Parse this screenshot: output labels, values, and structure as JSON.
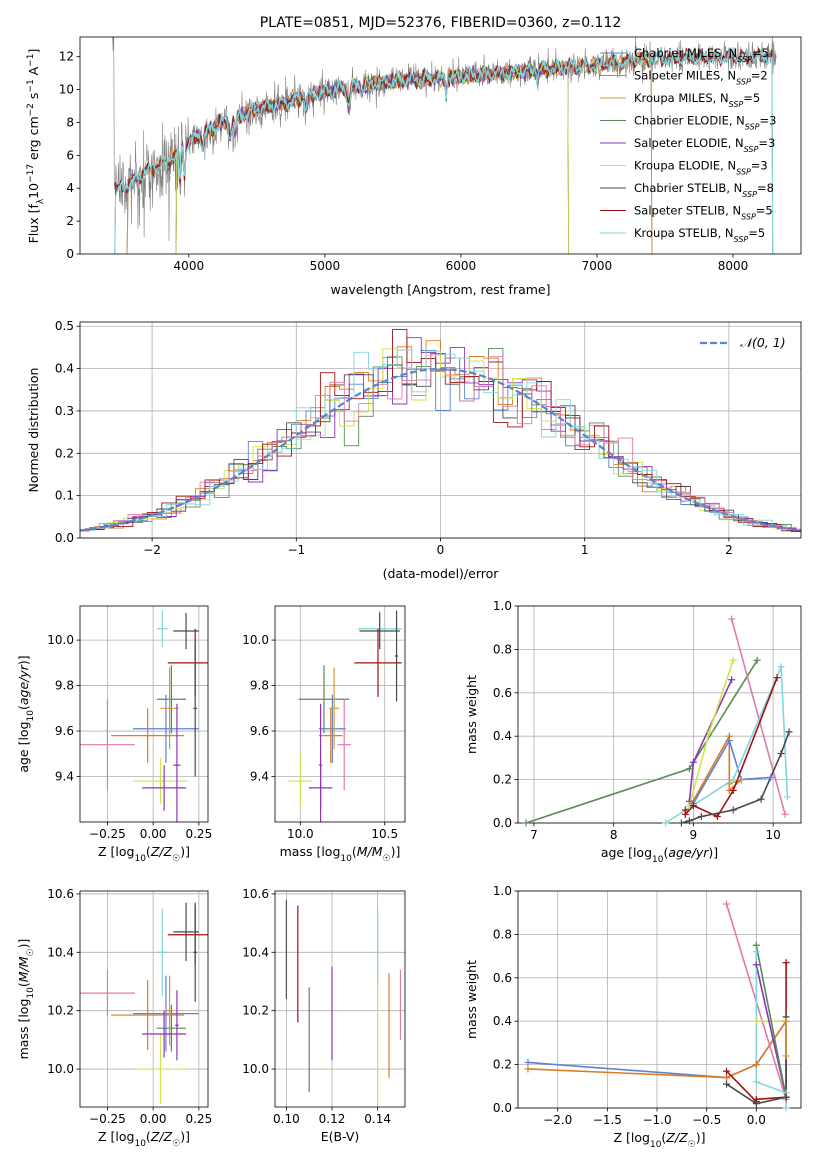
{
  "colors": {
    "Chabrier MILES": "#5b84d1",
    "Salpeter MILES": "#e07b22",
    "Kroupa MILES": "#d49a3c",
    "Chabrier ELODIE": "#5a8a56",
    "Salpeter ELODIE": "#8e33b5",
    "Kroupa ELODIE": "#cfe34a",
    "Chabrier STELIB": "#4a4a4a",
    "Salpeter STELIB": "#a31212",
    "Kroupa STELIB": "#7fd6dc",
    "extra": "#e07aaa",
    "gaussian": "#5b84d1"
  },
  "chart_data": [
    {
      "id": "spectrum",
      "type": "line",
      "title": "PLATE=0851, MJD=52376, FIBERID=0360, z=0.112",
      "xlabel": "wavelength [Angstrom, rest frame]",
      "ylabel": "Flux [fλ10⁻¹⁷ erg cm⁻² s⁻¹ A⁻¹]",
      "xlim": [
        3200,
        8500
      ],
      "ylim": [
        0,
        13.2
      ],
      "xticks": [
        4000,
        5000,
        6000,
        7000,
        8000
      ],
      "yticks": [
        0,
        2,
        4,
        6,
        8,
        10,
        12
      ],
      "grid": false,
      "legend_position": "right",
      "continuum": {
        "x": [
          3450,
          3600,
          3700,
          3800,
          3900,
          4000,
          4200,
          4500,
          4800,
          5000,
          5300,
          5600,
          6000,
          6300,
          6600,
          7000,
          7300,
          7600,
          8000,
          8300
        ],
        "y": [
          3.8,
          4.5,
          5.1,
          5.5,
          6.0,
          6.8,
          7.8,
          8.8,
          9.4,
          9.9,
          10.3,
          10.6,
          10.8,
          11.0,
          11.2,
          11.5,
          11.8,
          11.9,
          12.0,
          12.0
        ]
      },
      "legend": [
        "Chabrier MILES, N_SSP=5",
        "Salpeter MILES, N_SSP=2",
        "Kroupa MILES, N_SSP=5",
        "Chabrier ELODIE, N_SSP=3",
        "Salpeter ELODIE, N_SSP=3",
        "Kroupa ELODIE, N_SSP=3",
        "Chabrier STELIB, N_SSP=8",
        "Salpeter STELIB, N_SSP=5",
        "Kroupa STELIB, N_SSP=5"
      ],
      "legend_text": {
        "Chabrier MILES": "Chabrier MILES, N",
        "Salpeter MILES": "Salpeter MILES, N",
        "Kroupa MILES": "Kroupa MILES, N",
        "Chabrier ELODIE": "Chabrier ELODIE, N",
        "Salpeter ELODIE": "Salpeter ELODIE, N",
        "Kroupa ELODIE": "Kroupa ELODIE, N",
        "Chabrier STELIB": "Chabrier STELIB, N",
        "Salpeter STELIB": "Salpeter STELIB, N",
        "Kroupa STELIB": "Kroupa STELIB, N"
      },
      "legend_sub": "SSP",
      "legend_n": {
        "Chabrier MILES": "=5",
        "Salpeter MILES": "=2",
        "Kroupa MILES": "=5",
        "Chabrier ELODIE": "=3",
        "Salpeter ELODIE": "=3",
        "Kroupa ELODIE": "=3",
        "Chabrier STELIB": "=8",
        "Salpeter STELIB": "=5",
        "Kroupa STELIB": "=5"
      }
    },
    {
      "id": "residuals",
      "type": "histogram",
      "xlabel": "(data-model)/error",
      "ylabel": "Normed distribution",
      "xlim": [
        -2.5,
        2.5
      ],
      "ylim": [
        0,
        0.51
      ],
      "xticks": [
        -2,
        -1,
        0,
        1,
        2
      ],
      "yticks": [
        0.0,
        0.1,
        0.2,
        0.3,
        0.4,
        0.5
      ],
      "grid": true,
      "legend": [
        "𝒩(0, 1)"
      ],
      "legend_position": "top-right",
      "bin_width": 0.1
    },
    {
      "id": "age-vs-Z",
      "type": "errorbar",
      "xlabel": "Z [log10(Z/Z☉)]",
      "ylabel": "age [log10(age/yr)]",
      "xlim": [
        -0.4,
        0.3
      ],
      "ylim": [
        9.2,
        10.15
      ],
      "xticks": [
        -0.25,
        0.0,
        0.25
      ],
      "yticks": [
        9.4,
        9.6,
        9.8,
        10.0
      ],
      "grid": true,
      "points": [
        {
          "s": "Kroupa STELIB",
          "x": 0.05,
          "xe": 0.03,
          "y": 10.05,
          "ye": 0.08
        },
        {
          "s": "Chabrier STELIB",
          "x": 0.18,
          "xe": 0.07,
          "y": 10.04,
          "ye": 0.08
        },
        {
          "s": "Salpeter STELIB",
          "x": 0.23,
          "xe": 0.15,
          "y": 9.9,
          "ye": 0.15
        },
        {
          "s": "Chabrier ELODIE",
          "x": 0.1,
          "xe": 0.08,
          "y": 9.74,
          "ye": 0.15
        },
        {
          "s": "Chabrier MILES",
          "x": 0.07,
          "xe": 0.18,
          "y": 9.61,
          "ye": 0.15
        },
        {
          "s": "Salpeter MILES",
          "x": -0.03,
          "xe": 0.2,
          "y": 9.58,
          "ye": 0.12
        },
        {
          "s": "extra",
          "x": -0.25,
          "xe": 0.15,
          "y": 9.54,
          "ye": 0.2
        },
        {
          "s": "Kroupa MILES",
          "x": 0.09,
          "xe": 0.05,
          "y": 9.7,
          "ye": 0.18
        },
        {
          "s": "Kroupa ELODIE",
          "x": 0.04,
          "xe": 0.15,
          "y": 9.38,
          "ye": 0.1
        },
        {
          "s": "Salpeter ELODIE",
          "x": 0.06,
          "xe": 0.12,
          "y": 9.35,
          "ye": 0.1
        },
        {
          "s": "Salpeter ELODIE",
          "x": 0.13,
          "xe": 0.02,
          "y": 9.45,
          "ye": 0.27
        },
        {
          "s": "Chabrier STELIB",
          "x": 0.23,
          "xe": 0.01,
          "y": 9.7,
          "ye": 0.3
        }
      ]
    },
    {
      "id": "age-vs-mass",
      "type": "errorbar",
      "xlabel": "mass [log10(M/M☉)]",
      "ylabel": "",
      "xlim": [
        9.85,
        10.62
      ],
      "ylim": [
        9.2,
        10.15
      ],
      "xticks": [
        10.0,
        10.5
      ],
      "yticks": [
        9.4,
        9.6,
        9.8,
        10.0
      ],
      "grid": true,
      "points": [
        {
          "s": "Kroupa STELIB",
          "x": 10.47,
          "xe": 0.13,
          "y": 10.05,
          "ye": 0.08
        },
        {
          "s": "Chabrier STELIB",
          "x": 10.47,
          "xe": 0.12,
          "y": 10.04,
          "ye": 0.08
        },
        {
          "s": "Salpeter STELIB",
          "x": 10.46,
          "xe": 0.14,
          "y": 9.9,
          "ye": 0.15
        },
        {
          "s": "Chabrier ELODIE",
          "x": 10.14,
          "xe": 0.15,
          "y": 9.74,
          "ye": 0.15
        },
        {
          "s": "Chabrier MILES",
          "x": 10.19,
          "xe": 0.08,
          "y": 9.61,
          "ye": 0.15
        },
        {
          "s": "Salpeter MILES",
          "x": 10.18,
          "xe": 0.07,
          "y": 9.58,
          "ye": 0.12
        },
        {
          "s": "extra",
          "x": 10.26,
          "xe": 0.04,
          "y": 9.54,
          "ye": 0.2
        },
        {
          "s": "Kroupa MILES",
          "x": 10.2,
          "xe": 0.03,
          "y": 9.7,
          "ye": 0.18
        },
        {
          "s": "Kroupa ELODIE",
          "x": 10.0,
          "xe": 0.07,
          "y": 9.38,
          "ye": 0.12
        },
        {
          "s": "Salpeter ELODIE",
          "x": 10.12,
          "xe": 0.07,
          "y": 9.35,
          "ye": 0.1
        },
        {
          "s": "Salpeter ELODIE",
          "x": 10.12,
          "xe": 0.01,
          "y": 9.45,
          "ye": 0.27
        },
        {
          "s": "Chabrier STELIB",
          "x": 10.57,
          "xe": 0.01,
          "y": 9.93,
          "ye": 0.2
        }
      ]
    },
    {
      "id": "mass-weight-vs-age",
      "type": "line",
      "xlabel": "age [log10(age/yr)]",
      "ylabel": "mass weight",
      "xlim": [
        6.8,
        10.35
      ],
      "ylim": [
        0,
        1.0
      ],
      "xticks": [
        7,
        8,
        9,
        10
      ],
      "yticks": [
        0.0,
        0.2,
        0.4,
        0.6,
        0.8,
        1.0
      ],
      "grid": true,
      "series": [
        {
          "s": "Chabrier ELODIE",
          "x": [
            6.9,
            8.95,
            9.8
          ],
          "y": [
            0.0,
            0.25,
            0.75
          ]
        },
        {
          "s": "Salpeter ELODIE",
          "x": [
            8.95,
            9.0,
            9.48
          ],
          "y": [
            0.1,
            0.28,
            0.66
          ]
        },
        {
          "s": "Kroupa ELODIE",
          "x": [
            8.95,
            9.2,
            9.5
          ],
          "y": [
            0.08,
            0.42,
            0.75
          ]
        },
        {
          "s": "Salpeter MILES",
          "x": [
            8.98,
            9.45,
            9.45,
            9.6
          ],
          "y": [
            0.09,
            0.4,
            0.15,
            0.2
          ]
        },
        {
          "s": "Chabrier MILES",
          "x": [
            9.0,
            9.45,
            9.6,
            9.97
          ],
          "y": [
            0.09,
            0.38,
            0.2,
            0.21
          ]
        },
        {
          "s": "Kroupa MILES",
          "x": [
            9.45,
            9.6
          ],
          "y": [
            0.18,
            0.2
          ]
        },
        {
          "s": "extra",
          "x": [
            9.48,
            10.15
          ],
          "y": [
            0.94,
            0.04
          ]
        },
        {
          "s": "Kroupa STELIB",
          "x": [
            8.65,
            9.5,
            10.1,
            10.18
          ],
          "y": [
            0.0,
            0.2,
            0.72,
            0.12
          ]
        },
        {
          "s": "Salpeter STELIB",
          "x": [
            8.9,
            8.9,
            9.0,
            9.3,
            9.5,
            10.05
          ],
          "y": [
            0.06,
            0.04,
            0.08,
            0.03,
            0.15,
            0.67
          ]
        },
        {
          "s": "Chabrier STELIB",
          "x": [
            8.85,
            8.95,
            9.1,
            9.5,
            9.85,
            10.1,
            10.2
          ],
          "y": [
            0.0,
            0.01,
            0.03,
            0.06,
            0.11,
            0.32,
            0.42
          ]
        }
      ]
    },
    {
      "id": "mass-vs-Z",
      "type": "errorbar",
      "xlabel": "Z [log10(Z/Z☉)]",
      "ylabel": "mass [log10(M/M☉)]",
      "xlim": [
        -0.4,
        0.3
      ],
      "ylim": [
        9.87,
        10.61
      ],
      "xticks": [
        -0.25,
        0.0,
        0.25
      ],
      "yticks": [
        10.0,
        10.2,
        10.4,
        10.6
      ],
      "grid": true,
      "points": [
        {
          "s": "Kroupa STELIB",
          "x": 0.05,
          "xe": 0.03,
          "y": 10.4,
          "ye": 0.15
        },
        {
          "s": "Chabrier STELIB",
          "x": 0.18,
          "xe": 0.07,
          "y": 10.47,
          "ye": 0.1
        },
        {
          "s": "Salpeter STELIB",
          "x": 0.23,
          "xe": 0.15,
          "y": 10.46,
          "ye": 0.1
        },
        {
          "s": "Chabrier ELODIE",
          "x": 0.1,
          "xe": 0.08,
          "y": 10.14,
          "ye": 0.08
        },
        {
          "s": "Chabrier MILES",
          "x": 0.07,
          "xe": 0.18,
          "y": 10.19,
          "ye": 0.13
        },
        {
          "s": "Salpeter MILES",
          "x": -0.03,
          "xe": 0.2,
          "y": 10.185,
          "ye": 0.12
        },
        {
          "s": "extra",
          "x": -0.25,
          "xe": 0.15,
          "y": 10.26,
          "ye": 0.08
        },
        {
          "s": "Kroupa MILES",
          "x": 0.09,
          "xe": 0.02,
          "y": 10.2,
          "ye": 0.12
        },
        {
          "s": "Kroupa ELODIE",
          "x": 0.04,
          "xe": 0.15,
          "y": 10.0,
          "ye": 0.12
        },
        {
          "s": "Salpeter ELODIE",
          "x": 0.06,
          "xe": 0.12,
          "y": 10.12,
          "ye": 0.08
        },
        {
          "s": "Salpeter ELODIE",
          "x": 0.13,
          "xe": 0.01,
          "y": 10.15,
          "ye": 0.12
        },
        {
          "s": "Chabrier STELIB",
          "x": 0.23,
          "xe": 0.01,
          "y": 10.4,
          "ye": 0.17
        }
      ]
    },
    {
      "id": "mass-vs-ebv",
      "type": "errorbar",
      "xlabel": "E(B-V)",
      "ylabel": "",
      "xlim": [
        0.095,
        0.152
      ],
      "ylim": [
        9.87,
        10.61
      ],
      "xticks": [
        0.1,
        0.12,
        0.14
      ],
      "yticks": [
        10.0,
        10.2,
        10.4,
        10.6
      ],
      "grid": true,
      "points": [
        {
          "s": "Chabrier STELIB",
          "x": 0.1,
          "xe": 0,
          "y": 10.41,
          "ye": 0.17
        },
        {
          "s": "Salpeter STELIB",
          "x": 0.105,
          "xe": 0,
          "y": 10.36,
          "ye": 0.2
        },
        {
          "s": "Chabrier ELODIE",
          "x": 0.11,
          "xe": 0,
          "y": 10.1,
          "ye": 0.18
        },
        {
          "s": "Salpeter ELODIE",
          "x": 0.12,
          "xe": 0,
          "y": 10.19,
          "ye": 0.16
        },
        {
          "s": "Kroupa ELODIE",
          "x": 0.14,
          "xe": 0,
          "y": 10.2,
          "ye": 0.32
        },
        {
          "s": "Kroupa STELIB",
          "x": 0.14,
          "xe": 0,
          "y": 10.42,
          "ye": 0.13
        },
        {
          "s": "Salpeter MILES",
          "x": 0.145,
          "xe": 0,
          "y": 10.15,
          "ye": 0.18
        },
        {
          "s": "extra",
          "x": 0.15,
          "xe": 0,
          "y": 10.22,
          "ye": 0.12
        }
      ]
    },
    {
      "id": "mass-weight-vs-Z",
      "type": "line",
      "xlabel": "Z [log10(Z/Z☉)]",
      "ylabel": "mass weight",
      "xlim": [
        -2.4,
        0.45
      ],
      "ylim": [
        0,
        1.0
      ],
      "xticks": [
        -2.0,
        -1.5,
        -1.0,
        -0.5,
        0.0
      ],
      "yticks": [
        0.0,
        0.2,
        0.4,
        0.6,
        0.8,
        1.0
      ],
      "grid": true,
      "series": [
        {
          "s": "Chabrier MILES",
          "x": [
            -2.3,
            -0.3,
            0.0,
            0.3
          ],
          "y": [
            0.21,
            0.14,
            0.2,
            0.4
          ]
        },
        {
          "s": "Salpeter MILES",
          "x": [
            -2.3,
            -0.3,
            0.0,
            0.3
          ],
          "y": [
            0.18,
            0.14,
            0.2,
            0.4
          ]
        },
        {
          "s": "extra",
          "x": [
            -0.3,
            0.3
          ],
          "y": [
            0.94,
            0.04
          ]
        },
        {
          "s": "Kroupa ELODIE",
          "x": [
            0.0,
            0.0,
            0.3,
            0.3
          ],
          "y": [
            0.75,
            0.4,
            0.4,
            0.05
          ]
        },
        {
          "s": "Salpeter ELODIE",
          "x": [
            0.0,
            0.3
          ],
          "y": [
            0.66,
            0.05
          ]
        },
        {
          "s": "Chabrier ELODIE",
          "x": [
            0.0,
            0.3
          ],
          "y": [
            0.75,
            0.05
          ]
        },
        {
          "s": "Kroupa STELIB",
          "x": [
            0.0,
            0.0,
            0.3,
            0.3
          ],
          "y": [
            0.72,
            0.12,
            0.07,
            0.0
          ]
        },
        {
          "s": "Salpeter STELIB",
          "x": [
            -0.3,
            0.0,
            0.0,
            0.3,
            0.3
          ],
          "y": [
            0.17,
            0.03,
            0.04,
            0.05,
            0.67
          ]
        },
        {
          "s": "Chabrier STELIB",
          "x": [
            -0.3,
            0.0,
            0.3,
            0.3
          ],
          "y": [
            0.11,
            0.02,
            0.05,
            0.42
          ]
        },
        {
          "s": "Kroupa MILES",
          "x": [
            0.3,
            0.3
          ],
          "y": [
            0.24,
            0.4
          ]
        }
      ]
    }
  ]
}
